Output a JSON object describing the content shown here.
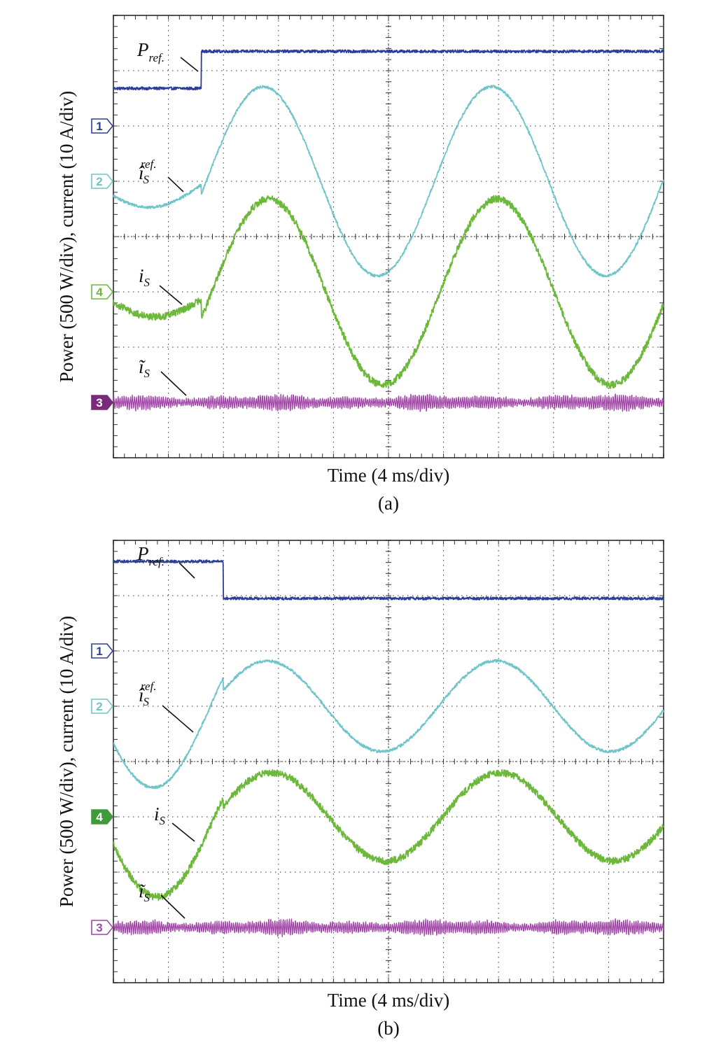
{
  "colors": {
    "ch1": "#2b3f99",
    "ch2": "#6fc5c8",
    "ch4": "#6cb83a",
    "ch3": "#a245a8",
    "grid": "#333333",
    "frame": "#555555",
    "ch4_filled": "#3f9a3a",
    "ch3_filled": "#7a2a7a"
  },
  "chart_data": [
    {
      "type": "line",
      "panel_label": "(a)",
      "ylabel": "Power (500 W/div), current (10 A/div)",
      "xlabel": "Time (4 ms/div)",
      "x_divisions": 10,
      "y_divisions": 8,
      "x_unit_per_div": "4 ms",
      "xlim": [
        0,
        40
      ],
      "grid": true,
      "channel_markers": [
        {
          "label": "1",
          "level_div": 6,
          "color": "#2b3f99",
          "filled": false
        },
        {
          "label": "2",
          "level_div": 5,
          "color": "#6fc5c8",
          "filled": false
        },
        {
          "label": "4",
          "level_div": 3,
          "color": "#6cb83a",
          "filled": false
        },
        {
          "label": "3",
          "level_div": 1,
          "color": "#7a2a7a",
          "filled": true
        }
      ],
      "annotations": [
        {
          "name": "P_ref",
          "main": "P",
          "sub": "ref."
        },
        {
          "name": "is_ref_hat",
          "main": "î",
          "sub": "S",
          "sup": "ref."
        },
        {
          "name": "i_S",
          "main": "i",
          "sub": "S"
        },
        {
          "name": "is_tilde",
          "main": "ĩ",
          "sub": "S"
        }
      ],
      "series": [
        {
          "name": "P_ref",
          "channel": "1",
          "kind": "step",
          "step_time_ms": 6.4,
          "before_div": 6.68,
          "after_div": 7.35
        },
        {
          "name": "is_ref_hat",
          "channel": "2",
          "kind": "sine",
          "offset_div": 5.0,
          "period_ms": 16.6,
          "peak_time_ms": 10.9,
          "amp_before_div": 0.47,
          "amp_after_div": 1.71
        },
        {
          "name": "i_S",
          "channel": "4",
          "kind": "sine",
          "offset_div": 3.0,
          "period_ms": 16.6,
          "peak_time_ms": 11.3,
          "amp_before_div": 0.45,
          "amp_after_div": 1.68
        },
        {
          "name": "is_tilde",
          "channel": "3",
          "kind": "ripple",
          "offset_div": 1.0,
          "amp_div": 0.15
        }
      ]
    },
    {
      "type": "line",
      "panel_label": "(b)",
      "ylabel": "Power (500 W/div), current (10 A/div)",
      "xlabel": "Time (4 ms/div)",
      "x_divisions": 10,
      "y_divisions": 8,
      "x_unit_per_div": "4 ms",
      "xlim": [
        0,
        40
      ],
      "grid": true,
      "channel_markers": [
        {
          "label": "1",
          "level_div": 6,
          "color": "#2b3f99",
          "filled": false
        },
        {
          "label": "2",
          "level_div": 5,
          "color": "#6fc5c8",
          "filled": false
        },
        {
          "label": "4",
          "level_div": 3,
          "color": "#3f9a3a",
          "filled": true
        },
        {
          "label": "3",
          "level_div": 1,
          "color": "#a245a8",
          "filled": false
        }
      ],
      "annotations": [
        {
          "name": "P_ref",
          "main": "P",
          "sub": "ref."
        },
        {
          "name": "is_ref_hat",
          "main": "î",
          "sub": "S",
          "sup": "ref."
        },
        {
          "name": "i_S",
          "main": "i",
          "sub": "S"
        },
        {
          "name": "is_tilde",
          "main": "ĩ",
          "sub": "S"
        }
      ],
      "series": [
        {
          "name": "P_ref",
          "channel": "1",
          "kind": "step",
          "step_time_ms": 8.0,
          "before_div": 7.62,
          "after_div": 6.95
        },
        {
          "name": "is_ref_hat",
          "channel": "2",
          "kind": "sine",
          "offset_div": 5.0,
          "period_ms": 16.6,
          "peak_time_ms": 11.2,
          "amp_before_div": 1.47,
          "amp_after_div": 0.82
        },
        {
          "name": "i_S",
          "channel": "4",
          "kind": "sine",
          "offset_div": 3.0,
          "period_ms": 16.6,
          "peak_time_ms": 11.5,
          "amp_before_div": 1.45,
          "amp_after_div": 0.8
        },
        {
          "name": "is_tilde",
          "channel": "3",
          "kind": "ripple",
          "offset_div": 1.0,
          "amp_div": 0.15
        }
      ]
    }
  ]
}
